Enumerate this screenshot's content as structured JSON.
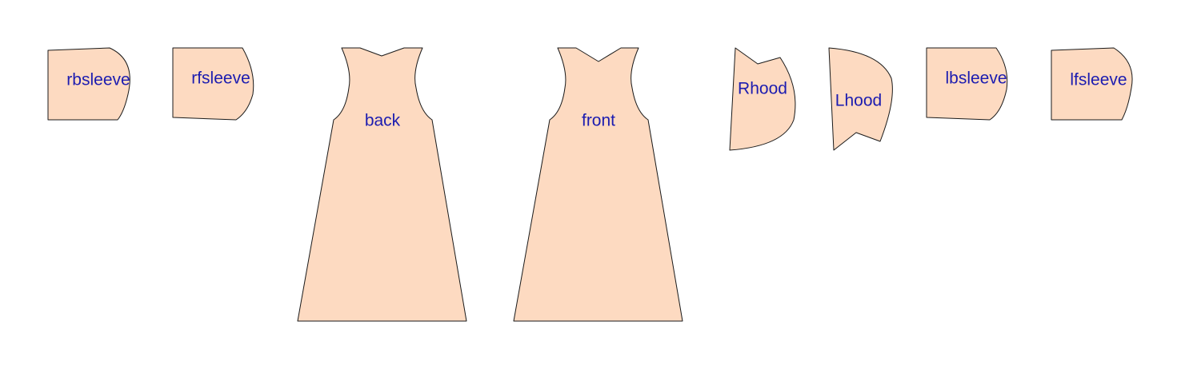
{
  "colors": {
    "piece_fill": "#fddac1",
    "piece_stroke": "#1a1a1a",
    "label_color": "#1c1cb0",
    "background": "#ffffff"
  },
  "pieces": [
    {
      "id": "rbsleeve",
      "label": "rbsleeve"
    },
    {
      "id": "rfsleeve",
      "label": "rfsleeve"
    },
    {
      "id": "back",
      "label": "back"
    },
    {
      "id": "front",
      "label": "front"
    },
    {
      "id": "rhood",
      "label": "Rhood"
    },
    {
      "id": "lhood",
      "label": "Lhood"
    },
    {
      "id": "lbsleeve",
      "label": "lbsleeve"
    },
    {
      "id": "lfsleeve",
      "label": "lfsleeve"
    }
  ]
}
